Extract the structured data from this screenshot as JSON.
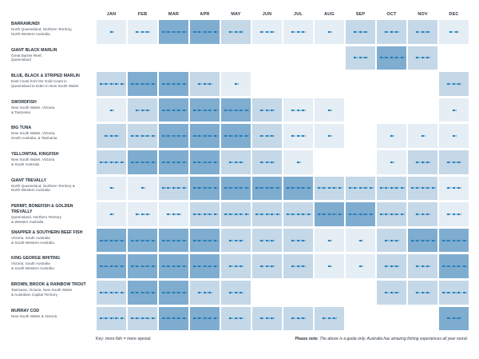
{
  "months": [
    "JAN",
    "FEB",
    "MAR",
    "APR",
    "MAY",
    "JUN",
    "JUL",
    "AUG",
    "SEP",
    "OCT",
    "NOV",
    "DEC"
  ],
  "legend": {
    "key": "Key: more fish = more special"
  },
  "note": {
    "label": "Please note:",
    "text": "The above is a guide only. Australia has amazing fishing experiences all year round."
  },
  "colors": {
    "level0": "#ffffff",
    "level1": "#e5eef5",
    "level2": "#c4d8e8",
    "level3": "#7fadd0",
    "fish": "#1a78b8"
  },
  "species": [
    {
      "name": "BARRAMUNDI",
      "regions": [
        "North Queensland, Northern Territory,",
        "North-Western Australia"
      ],
      "fish": [
        1,
        3,
        5,
        5,
        3,
        3,
        3,
        1,
        3,
        3,
        3,
        2
      ],
      "shade": [
        1,
        1,
        3,
        3,
        2,
        1,
        1,
        1,
        2,
        2,
        2,
        1
      ]
    },
    {
      "name": "GIANT BLACK MARLIN",
      "regions": [
        "Great Barrier Reef,",
        "Queensland"
      ],
      "fish": [
        0,
        0,
        0,
        0,
        0,
        0,
        0,
        0,
        3,
        5,
        3,
        0
      ],
      "shade": [
        0,
        0,
        0,
        0,
        0,
        0,
        0,
        0,
        2,
        3,
        2,
        0
      ]
    },
    {
      "name": "BLUE, BLACK & STRIPED MARLIN",
      "regions": [
        "East Coast from the Gold Coast in",
        "Queensland to Eden in New South Wales"
      ],
      "fish": [
        5,
        5,
        5,
        3,
        1,
        0,
        0,
        0,
        0,
        0,
        0,
        3
      ],
      "shade": [
        2,
        3,
        3,
        2,
        1,
        0,
        0,
        0,
        0,
        0,
        0,
        2
      ]
    },
    {
      "name": "SWORDFISH",
      "regions": [
        "New South Wales, Victoria",
        "& Tasmania"
      ],
      "fish": [
        1,
        3,
        5,
        5,
        5,
        3,
        3,
        1,
        0,
        0,
        0,
        1
      ],
      "shade": [
        1,
        2,
        3,
        3,
        3,
        2,
        1,
        1,
        0,
        0,
        0,
        1
      ]
    },
    {
      "name": "BIG TUNA",
      "regions": [
        "New South Wales, Victoria,",
        "South Australia, & Tasmania"
      ],
      "fish": [
        3,
        5,
        5,
        5,
        5,
        3,
        3,
        1,
        0,
        1,
        1,
        1
      ],
      "shade": [
        2,
        2,
        3,
        3,
        3,
        2,
        1,
        1,
        0,
        1,
        1,
        1
      ]
    },
    {
      "name": "YELLOWTAIL KINGFISH",
      "regions": [
        "New South Wales, Victoria",
        "& South Australia"
      ],
      "fish": [
        5,
        5,
        5,
        5,
        3,
        3,
        1,
        0,
        0,
        1,
        3,
        3
      ],
      "shade": [
        2,
        3,
        3,
        3,
        2,
        2,
        1,
        0,
        0,
        1,
        2,
        2
      ]
    },
    {
      "name": "GIANT TREVALLY",
      "regions": [
        "North Queensland, Northern Territory &",
        "North-Western Australia"
      ],
      "fish": [
        1,
        1,
        5,
        5,
        5,
        5,
        5,
        5,
        5,
        5,
        5,
        3
      ],
      "shade": [
        1,
        1,
        2,
        3,
        3,
        3,
        3,
        2,
        2,
        2,
        2,
        1
      ]
    },
    {
      "name": "PERMIT, BONEFISH & GOLDEN TREVALLY",
      "regions": [
        "Queensland, Northern Territory",
        "& Western Australia"
      ],
      "fish": [
        1,
        3,
        3,
        5,
        5,
        5,
        5,
        5,
        5,
        5,
        3,
        3
      ],
      "shade": [
        1,
        1,
        1,
        2,
        2,
        2,
        2,
        3,
        3,
        2,
        2,
        1
      ]
    },
    {
      "name": "SNAPPER & SOUTHERN BEEF FISH",
      "regions": [
        "Victoria, South Australia",
        "& South-Western Australia"
      ],
      "fish": [
        5,
        5,
        5,
        5,
        3,
        3,
        3,
        1,
        1,
        3,
        5,
        5
      ],
      "shade": [
        3,
        3,
        3,
        3,
        2,
        2,
        2,
        1,
        1,
        2,
        3,
        3
      ]
    },
    {
      "name": "KING GEORGE WHITING",
      "regions": [
        "Victoria, South Australia",
        "& South-Western Australia"
      ],
      "fish": [
        5,
        5,
        5,
        5,
        3,
        3,
        3,
        1,
        1,
        3,
        3,
        5
      ],
      "shade": [
        3,
        3,
        3,
        3,
        2,
        2,
        2,
        1,
        1,
        2,
        2,
        3
      ]
    },
    {
      "name": "BROWN, BROOK & RAINBOW TROUT",
      "regions": [
        "Tasmania, Victoria, New South Wales",
        "& Australian Capital Territory"
      ],
      "fish": [
        5,
        5,
        5,
        3,
        3,
        0,
        0,
        0,
        0,
        3,
        3,
        5
      ],
      "shade": [
        2,
        3,
        3,
        2,
        2,
        0,
        0,
        0,
        0,
        2,
        2,
        2
      ]
    },
    {
      "name": "MURRAY COD",
      "regions": [
        "New South Wales & Victoria"
      ],
      "fish": [
        5,
        5,
        5,
        5,
        3,
        3,
        3,
        3,
        0,
        0,
        0,
        3
      ],
      "shade": [
        2,
        2,
        3,
        3,
        2,
        2,
        2,
        2,
        0,
        0,
        0,
        3
      ]
    }
  ]
}
